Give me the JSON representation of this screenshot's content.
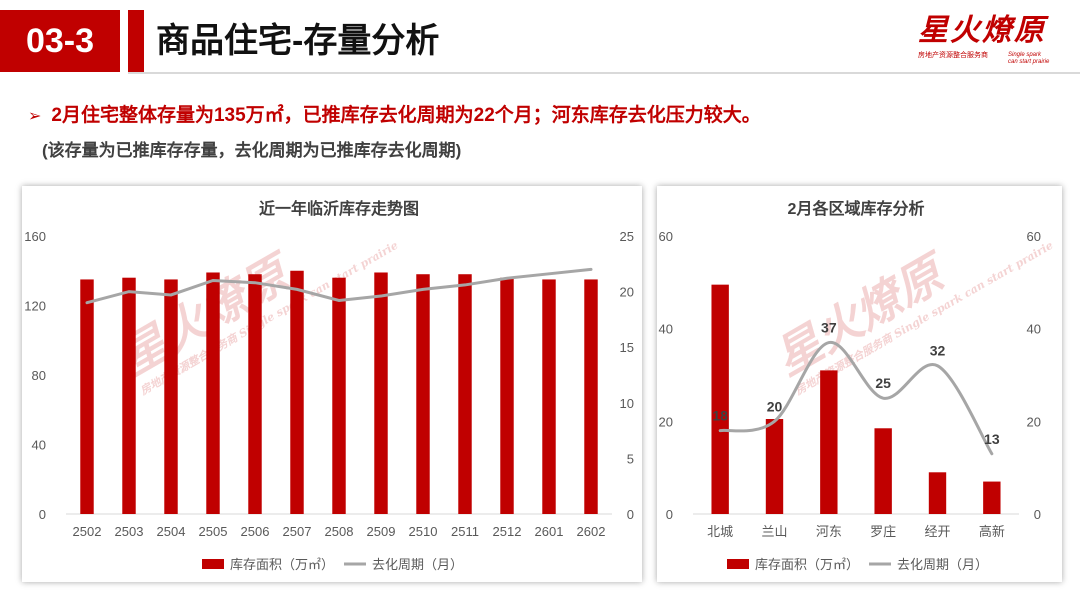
{
  "header": {
    "section_number": "03-3",
    "title": "商品住宅-存量分析"
  },
  "logo": {
    "name": "星火燎原",
    "subtitle": "房地产资源整合服务商",
    "en1": "Single spark",
    "en2": "can start prairie"
  },
  "summary": {
    "bullet": "2月住宅整体存量为135万㎡，已推库存去化周期为22个月；河东库存去化压力较大。",
    "note": "(该存量为已推库存存量，去化周期为已推库存去化周期)"
  },
  "colors": {
    "accent": "#c00000",
    "bar": "#c00000",
    "line": "#a6a6a6"
  },
  "chart_data": [
    {
      "type": "bar",
      "title": "近一年临沂库存走势图",
      "categories": [
        "2502",
        "2503",
        "2504",
        "2505",
        "2506",
        "2507",
        "2508",
        "2509",
        "2510",
        "2511",
        "2512",
        "2601",
        "2602"
      ],
      "series": [
        {
          "name": "库存面积（万㎡）",
          "type": "bar",
          "axis": "left",
          "values": [
            135,
            136,
            135,
            139,
            138,
            140,
            136,
            139,
            138,
            138,
            136,
            135,
            135
          ]
        },
        {
          "name": "去化周期（月）",
          "type": "line",
          "axis": "right",
          "values": [
            19,
            20,
            19.7,
            21,
            20.8,
            20.2,
            19.2,
            19.6,
            20.2,
            20.6,
            21.2,
            21.6,
            22
          ]
        }
      ],
      "y_left": {
        "min": 0,
        "max": 160,
        "ticks": [
          "0",
          "40",
          "80",
          "120",
          "160"
        ]
      },
      "y_right": {
        "min": 0,
        "max": 25,
        "ticks": [
          "0",
          "5",
          "10",
          "15",
          "20",
          "25"
        ]
      },
      "legend": "bottom"
    },
    {
      "type": "bar",
      "title": "2月各区域库存分析",
      "categories": [
        "北城",
        "兰山",
        "河东",
        "罗庄",
        "经开",
        "高新"
      ],
      "series": [
        {
          "name": "库存面积（万㎡）",
          "type": "bar",
          "axis": "left",
          "values": [
            49.5,
            20.5,
            31,
            18.5,
            9,
            7
          ]
        },
        {
          "name": "去化周期（月）",
          "type": "line",
          "axis": "right",
          "smooth": true,
          "values": [
            18,
            20,
            37,
            25,
            32,
            13
          ],
          "labels": [
            "18",
            "20",
            "37",
            "25",
            "32",
            "13"
          ]
        }
      ],
      "y_left": {
        "min": 0,
        "max": 60,
        "ticks": [
          "0",
          "20",
          "40",
          "60"
        ]
      },
      "y_right": {
        "min": 0,
        "max": 60,
        "ticks": [
          "0",
          "20",
          "40",
          "60"
        ]
      },
      "legend": "bottom"
    }
  ]
}
